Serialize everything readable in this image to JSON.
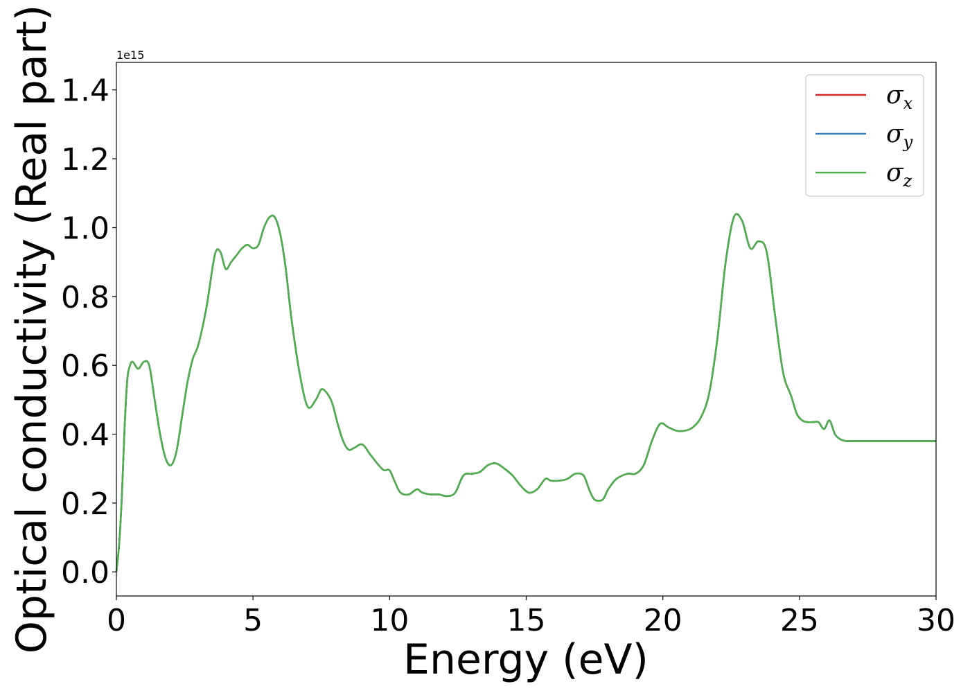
{
  "chart_data": {
    "type": "line",
    "title": "",
    "xlabel": "Energy (eV)",
    "ylabel": "Optical conductivity (Real part)",
    "y_offset_text": "1e15",
    "xlim": [
      0,
      30
    ],
    "ylim": [
      -0.07,
      1.48
    ],
    "xticks": [
      0,
      5,
      10,
      15,
      20,
      25,
      30
    ],
    "xtick_labels": [
      "0",
      "5",
      "10",
      "15",
      "20",
      "25",
      "30"
    ],
    "yticks": [
      0.0,
      0.2,
      0.4,
      0.6,
      0.8,
      1.0,
      1.2,
      1.4
    ],
    "ytick_labels": [
      "0.0",
      "0.2",
      "0.4",
      "0.6",
      "0.8",
      "1.0",
      "1.2",
      "1.4"
    ],
    "grid": false,
    "legend_position": "top-right",
    "x": [
      0,
      0.1,
      0.2,
      0.3,
      0.4,
      0.5,
      0.6,
      0.8,
      1.0,
      1.2,
      1.4,
      1.6,
      1.8,
      2.0,
      2.2,
      2.4,
      2.6,
      2.8,
      3.0,
      3.3,
      3.6,
      3.8,
      4.0,
      4.2,
      4.4,
      4.6,
      4.8,
      5.0,
      5.2,
      5.4,
      5.6,
      5.8,
      6.0,
      6.2,
      6.4,
      6.7,
      7.0,
      7.3,
      7.5,
      7.7,
      7.9,
      8.1,
      8.3,
      8.5,
      8.7,
      9.0,
      9.3,
      9.6,
      9.8,
      10.0,
      10.2,
      10.4,
      10.7,
      11.0,
      11.2,
      11.5,
      11.8,
      12.1,
      12.4,
      12.7,
      13.0,
      13.3,
      13.6,
      13.9,
      14.2,
      14.5,
      14.8,
      15.1,
      15.4,
      15.7,
      15.9,
      16.2,
      16.5,
      16.8,
      17.1,
      17.3,
      17.5,
      17.8,
      18.0,
      18.3,
      18.7,
      19.0,
      19.3,
      19.6,
      19.9,
      20.2,
      20.5,
      20.8,
      21.1,
      21.4,
      21.7,
      22.0,
      22.3,
      22.6,
      22.9,
      23.2,
      23.5,
      23.8,
      24.1,
      24.4,
      24.7,
      24.9,
      25.1,
      25.3,
      25.5,
      25.7,
      25.9,
      26.1,
      26.3,
      26.5,
      26.7,
      27.0,
      27.3,
      27.6,
      27.9,
      28.2,
      28.5,
      28.8,
      29.1,
      29.4,
      29.7,
      30.0
    ],
    "series": [
      {
        "name": "σx",
        "color": "#d62728",
        "values": [
          0.0,
          0.08,
          0.22,
          0.42,
          0.56,
          0.6,
          0.61,
          0.59,
          0.61,
          0.6,
          0.5,
          0.4,
          0.33,
          0.31,
          0.35,
          0.45,
          0.55,
          0.62,
          0.66,
          0.77,
          0.92,
          0.93,
          0.88,
          0.9,
          0.92,
          0.94,
          0.95,
          0.94,
          0.95,
          1.0,
          1.03,
          1.03,
          0.98,
          0.88,
          0.74,
          0.58,
          0.48,
          0.5,
          0.53,
          0.52,
          0.49,
          0.43,
          0.38,
          0.355,
          0.36,
          0.37,
          0.34,
          0.31,
          0.295,
          0.295,
          0.26,
          0.23,
          0.225,
          0.24,
          0.23,
          0.225,
          0.225,
          0.22,
          0.23,
          0.28,
          0.285,
          0.29,
          0.31,
          0.315,
          0.3,
          0.28,
          0.25,
          0.23,
          0.24,
          0.27,
          0.265,
          0.265,
          0.27,
          0.285,
          0.28,
          0.24,
          0.21,
          0.21,
          0.24,
          0.27,
          0.285,
          0.285,
          0.31,
          0.38,
          0.43,
          0.42,
          0.41,
          0.41,
          0.42,
          0.45,
          0.52,
          0.68,
          0.9,
          1.03,
          1.02,
          0.94,
          0.96,
          0.93,
          0.75,
          0.58,
          0.51,
          0.46,
          0.44,
          0.435,
          0.435,
          0.435,
          0.415,
          0.44,
          0.4,
          0.385,
          0.38,
          0.38,
          0.38,
          0.38,
          0.38,
          0.38,
          0.38,
          0.38,
          0.38,
          0.38,
          0.38,
          0.38
        ]
      },
      {
        "name": "σy",
        "color": "#377eb8",
        "values": [
          0.0,
          0.08,
          0.22,
          0.42,
          0.56,
          0.6,
          0.61,
          0.59,
          0.61,
          0.6,
          0.5,
          0.4,
          0.33,
          0.31,
          0.35,
          0.45,
          0.55,
          0.62,
          0.66,
          0.77,
          0.92,
          0.93,
          0.88,
          0.9,
          0.92,
          0.94,
          0.95,
          0.94,
          0.95,
          1.0,
          1.03,
          1.03,
          0.98,
          0.88,
          0.74,
          0.58,
          0.48,
          0.5,
          0.53,
          0.52,
          0.49,
          0.43,
          0.38,
          0.355,
          0.36,
          0.37,
          0.34,
          0.31,
          0.295,
          0.295,
          0.26,
          0.23,
          0.225,
          0.24,
          0.23,
          0.225,
          0.225,
          0.22,
          0.23,
          0.28,
          0.285,
          0.29,
          0.31,
          0.315,
          0.3,
          0.28,
          0.25,
          0.23,
          0.24,
          0.27,
          0.265,
          0.265,
          0.27,
          0.285,
          0.28,
          0.24,
          0.21,
          0.21,
          0.24,
          0.27,
          0.285,
          0.285,
          0.31,
          0.38,
          0.43,
          0.42,
          0.41,
          0.41,
          0.42,
          0.45,
          0.52,
          0.68,
          0.9,
          1.03,
          1.02,
          0.94,
          0.96,
          0.93,
          0.75,
          0.58,
          0.51,
          0.46,
          0.44,
          0.435,
          0.435,
          0.435,
          0.415,
          0.44,
          0.4,
          0.385,
          0.38,
          0.38,
          0.38,
          0.38,
          0.38,
          0.38,
          0.38,
          0.38,
          0.38,
          0.38,
          0.38,
          0.38
        ]
      },
      {
        "name": "σz",
        "color": "#4daf4a",
        "values": [
          0.0,
          0.08,
          0.22,
          0.42,
          0.56,
          0.6,
          0.61,
          0.59,
          0.61,
          0.6,
          0.5,
          0.4,
          0.33,
          0.31,
          0.35,
          0.45,
          0.55,
          0.62,
          0.66,
          0.77,
          0.92,
          0.93,
          0.88,
          0.9,
          0.92,
          0.94,
          0.95,
          0.94,
          0.95,
          1.0,
          1.03,
          1.03,
          0.98,
          0.88,
          0.74,
          0.58,
          0.48,
          0.5,
          0.53,
          0.52,
          0.49,
          0.43,
          0.38,
          0.355,
          0.36,
          0.37,
          0.34,
          0.31,
          0.295,
          0.295,
          0.26,
          0.23,
          0.225,
          0.24,
          0.23,
          0.225,
          0.225,
          0.22,
          0.23,
          0.28,
          0.285,
          0.29,
          0.31,
          0.315,
          0.3,
          0.28,
          0.25,
          0.23,
          0.24,
          0.27,
          0.265,
          0.265,
          0.27,
          0.285,
          0.28,
          0.24,
          0.21,
          0.21,
          0.24,
          0.27,
          0.285,
          0.285,
          0.31,
          0.38,
          0.43,
          0.42,
          0.41,
          0.41,
          0.42,
          0.45,
          0.52,
          0.68,
          0.9,
          1.03,
          1.02,
          0.94,
          0.96,
          0.93,
          0.75,
          0.58,
          0.51,
          0.46,
          0.44,
          0.435,
          0.435,
          0.435,
          0.415,
          0.44,
          0.4,
          0.385,
          0.38,
          0.38,
          0.38,
          0.38,
          0.38,
          0.38,
          0.38,
          0.38,
          0.38,
          0.38,
          0.38,
          0.38
        ]
      }
    ],
    "legend": [
      {
        "symbol": "σ",
        "sub": "x",
        "color": "#d62728"
      },
      {
        "symbol": "σ",
        "sub": "y",
        "color": "#377eb8"
      },
      {
        "symbol": "σ",
        "sub": "z",
        "color": "#4daf4a"
      }
    ]
  }
}
